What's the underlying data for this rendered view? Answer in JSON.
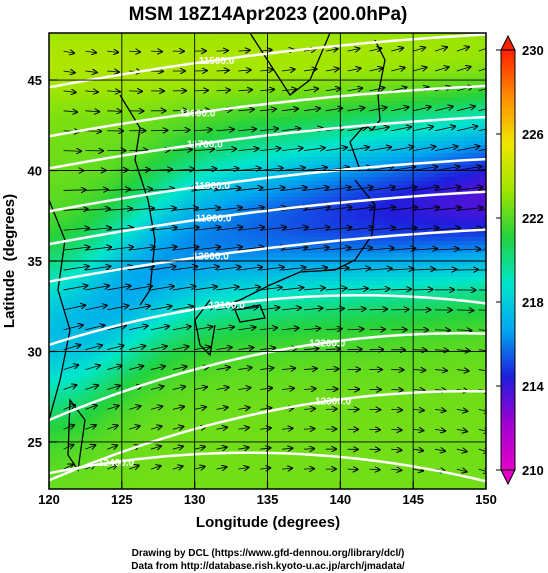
{
  "title": "MSM 18Z14Apr2023 (200.0hPa)",
  "credits": [
    "Drawing by DCL (https://www.gfd-dennou.org/library/dcl/)",
    "Data from http://database.rish.kyoto-u.ac.jp/arch/jmadata/"
  ],
  "chart_data": {
    "type": "heatmap",
    "title": "MSM 18Z14Apr2023 (200.0hPa)",
    "xlabel": "Longitude (degrees)",
    "ylabel": "Latitude  (degrees)",
    "xlim": [
      120,
      150
    ],
    "ylim": [
      22.4,
      47.6
    ],
    "xticks": [
      120,
      125,
      130,
      135,
      140,
      145,
      150
    ],
    "yticks": [
      25,
      30,
      35,
      40,
      45
    ],
    "colorbar": {
      "min": 210,
      "max": 230,
      "ticks": [
        210,
        214,
        218,
        222,
        226,
        230
      ],
      "colors": [
        "#e400c8",
        "#a000d2",
        "#1e1ede",
        "#00a6f0",
        "#00e6cc",
        "#24d23c",
        "#a0e600",
        "#f0e600",
        "#ff8c00",
        "#ff2000"
      ]
    },
    "contours": [
      {
        "label": "11500.0",
        "lon": 131.5,
        "lat": 46.1
      },
      {
        "label": "11600.0",
        "lon": 130.2,
        "lat": 43.2
      },
      {
        "label": "11700.0",
        "lon": 130.7,
        "lat": 41.5
      },
      {
        "label": "11800.0",
        "lon": 131.2,
        "lat": 39.2
      },
      {
        "label": "11900.0",
        "lon": 131.3,
        "lat": 37.4
      },
      {
        "label": "12000.0",
        "lon": 131.1,
        "lat": 35.3
      },
      {
        "label": "12100.0",
        "lon": 132.2,
        "lat": 32.6
      },
      {
        "label": "12200.0",
        "lon": 139.1,
        "lat": 30.5
      },
      {
        "label": "12300.0",
        "lon": 139.5,
        "lat": 27.3
      },
      {
        "label": "12400.0",
        "lon": 124.6,
        "lat": 23.9
      }
    ],
    "grid": true,
    "wind_vectors": true,
    "coastlines": true
  }
}
